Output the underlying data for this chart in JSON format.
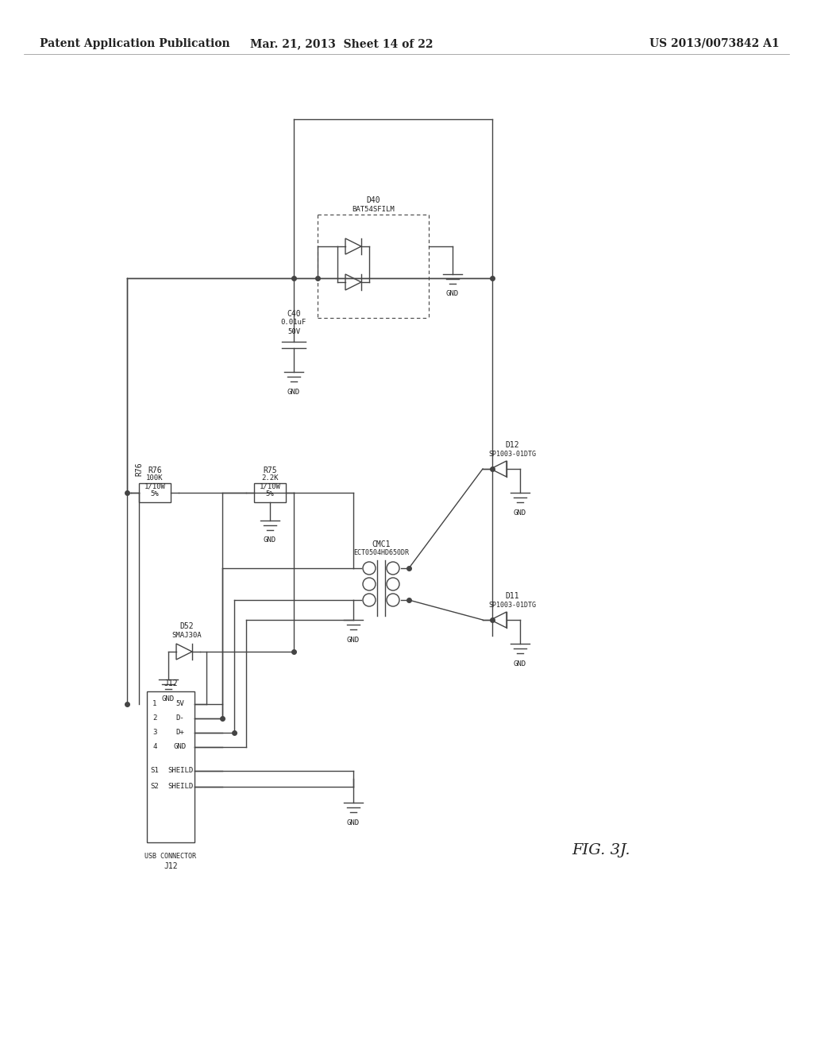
{
  "background_color": "#ffffff",
  "header_left": "Patent Application Publication",
  "header_mid": "Mar. 21, 2013  Sheet 14 of 22",
  "header_right": "US 2013/0073842 A1",
  "figure_label": "FIG. 3J.",
  "title_fontsize": 11,
  "schematic_color": "#444444",
  "text_color": "#222222"
}
